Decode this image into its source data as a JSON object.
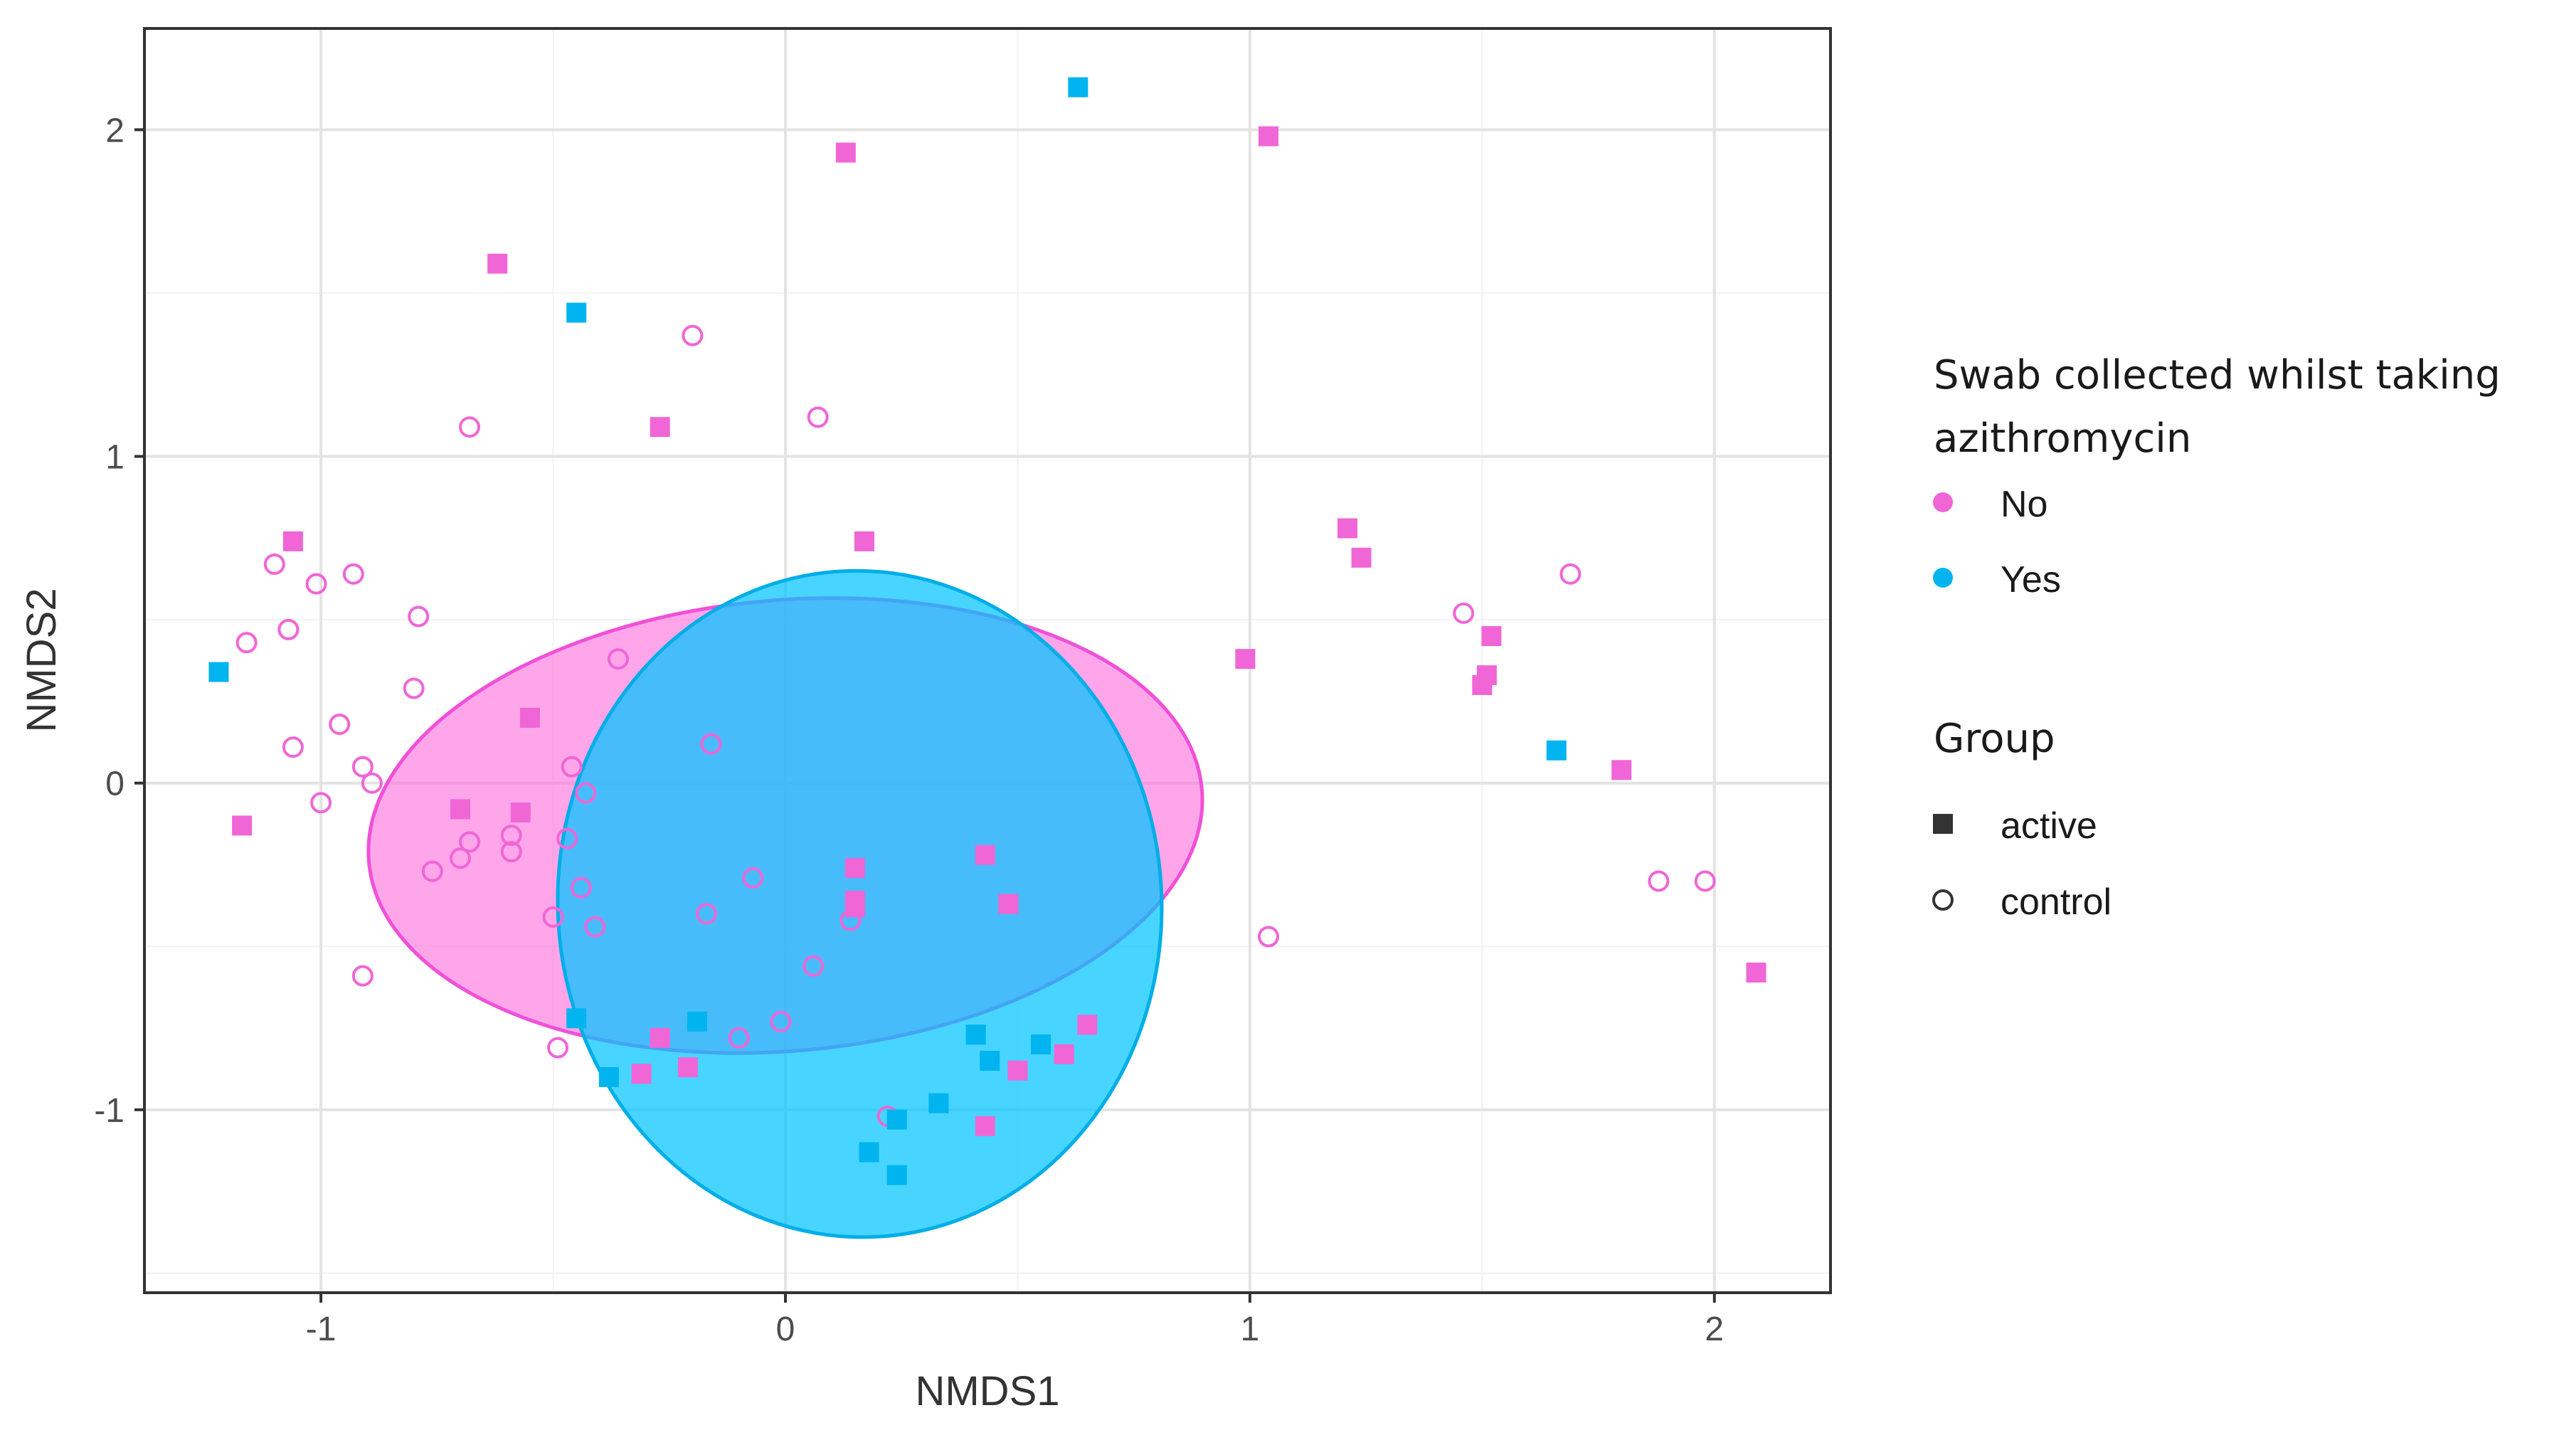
{
  "chart_data": {
    "type": "scatter",
    "title": "",
    "xlabel": "NMDS1",
    "ylabel": "NMDS2",
    "xlim": [
      -1.38,
      2.25
    ],
    "ylim": [
      -1.56,
      2.31
    ],
    "xticks": [
      -1,
      0,
      1,
      2
    ],
    "yticks": [
      -1,
      0,
      1,
      2
    ],
    "xtick_labels": [
      "-1",
      "0",
      "1",
      "2"
    ],
    "ytick_labels": [
      "-1",
      "0",
      "1",
      "2"
    ],
    "grid": true,
    "legend_position": "right",
    "colors": {
      "No": "#f066d6",
      "Yes": "#00b4ef"
    },
    "legends": [
      {
        "title_lines": [
          "Swab collected whilst taking",
          "azithromycin"
        ],
        "entries": [
          {
            "label": "No",
            "color": "#f066d6",
            "shape": "circle-filled"
          },
          {
            "label": "Yes",
            "color": "#00b4ef",
            "shape": "circle-filled"
          }
        ]
      },
      {
        "title_lines": [
          "Group"
        ],
        "entries": [
          {
            "label": "active",
            "color": "#333333",
            "shape": "square"
          },
          {
            "label": "control",
            "color": "#333333",
            "shape": "circle-open"
          }
        ]
      }
    ],
    "ellipses": [
      {
        "group": "No",
        "cx": 0.0,
        "cy": -0.13,
        "rx": 0.9,
        "ry": 0.69,
        "rotation": -5,
        "fill": "#ff66dd",
        "stroke": "#f050d8",
        "opacity": 0.58
      },
      {
        "group": "Yes",
        "cx": 0.16,
        "cy": -0.37,
        "rx": 0.65,
        "ry": 1.02,
        "rotation": -3,
        "fill": "#00c5ff",
        "stroke": "#00aee8",
        "opacity": 0.72
      }
    ],
    "series": [
      {
        "name": "No / active",
        "azithromycin": "No",
        "group": "active",
        "points": [
          [
            0.13,
            1.93
          ],
          [
            1.04,
            1.98
          ],
          [
            -0.62,
            1.59
          ],
          [
            -0.27,
            1.09
          ],
          [
            0.17,
            0.74
          ],
          [
            -1.06,
            0.74
          ],
          [
            1.21,
            0.78
          ],
          [
            1.24,
            0.69
          ],
          [
            0.99,
            0.38
          ],
          [
            1.52,
            0.45
          ],
          [
            1.51,
            0.33
          ],
          [
            1.5,
            0.3
          ],
          [
            1.8,
            0.04
          ],
          [
            -0.55,
            0.2
          ],
          [
            -1.17,
            -0.13
          ],
          [
            -0.7,
            -0.08
          ],
          [
            -0.57,
            -0.09
          ],
          [
            0.15,
            -0.26
          ],
          [
            0.15,
            -0.36
          ],
          [
            0.15,
            -0.38
          ],
          [
            0.43,
            -0.22
          ],
          [
            0.48,
            -0.37
          ],
          [
            2.09,
            -0.58
          ],
          [
            -0.27,
            -0.78
          ],
          [
            -0.31,
            -0.89
          ],
          [
            -0.21,
            -0.87
          ],
          [
            0.5,
            -0.88
          ],
          [
            0.6,
            -0.83
          ],
          [
            0.65,
            -0.74
          ],
          [
            0.43,
            -1.05
          ]
        ]
      },
      {
        "name": "No / control",
        "azithromycin": "No",
        "group": "control",
        "points": [
          [
            -0.2,
            1.37
          ],
          [
            0.07,
            1.12
          ],
          [
            -0.68,
            1.09
          ],
          [
            1.69,
            0.64
          ],
          [
            -1.1,
            0.67
          ],
          [
            -1.01,
            0.61
          ],
          [
            -0.93,
            0.64
          ],
          [
            -1.07,
            0.47
          ],
          [
            -1.16,
            0.43
          ],
          [
            -0.79,
            0.51
          ],
          [
            1.46,
            0.52
          ],
          [
            -0.36,
            0.38
          ],
          [
            -0.8,
            0.29
          ],
          [
            -0.96,
            0.18
          ],
          [
            -1.06,
            0.11
          ],
          [
            -0.16,
            0.12
          ],
          [
            -0.91,
            0.05
          ],
          [
            -0.89,
            0.0
          ],
          [
            -0.46,
            0.05
          ],
          [
            -0.43,
            -0.03
          ],
          [
            -1.0,
            -0.06
          ],
          [
            -0.68,
            -0.18
          ],
          [
            -0.59,
            -0.16
          ],
          [
            -0.59,
            -0.21
          ],
          [
            -0.7,
            -0.23
          ],
          [
            -0.47,
            -0.17
          ],
          [
            -0.76,
            -0.27
          ],
          [
            -0.07,
            -0.29
          ],
          [
            -0.44,
            -0.32
          ],
          [
            -0.17,
            -0.4
          ],
          [
            -0.5,
            -0.41
          ],
          [
            -0.41,
            -0.44
          ],
          [
            0.14,
            -0.42
          ],
          [
            1.88,
            -0.3
          ],
          [
            1.98,
            -0.3
          ],
          [
            1.04,
            -0.47
          ],
          [
            0.06,
            -0.56
          ],
          [
            -0.91,
            -0.59
          ],
          [
            -0.01,
            -0.73
          ],
          [
            -0.1,
            -0.78
          ],
          [
            -0.49,
            -0.81
          ],
          [
            0.22,
            -1.02
          ]
        ]
      },
      {
        "name": "Yes / active",
        "azithromycin": "Yes",
        "group": "active",
        "points": [
          [
            0.63,
            2.13
          ],
          [
            -0.45,
            1.44
          ],
          [
            -1.22,
            0.34
          ],
          [
            1.66,
            0.1
          ],
          [
            -0.45,
            -0.72
          ],
          [
            -0.19,
            -0.73
          ],
          [
            -0.38,
            -0.9
          ],
          [
            0.41,
            -0.77
          ],
          [
            0.44,
            -0.85
          ],
          [
            0.55,
            -0.8
          ],
          [
            0.33,
            -0.98
          ],
          [
            0.24,
            -1.03
          ],
          [
            0.18,
            -1.13
          ],
          [
            0.24,
            -1.2
          ]
        ]
      }
    ]
  }
}
